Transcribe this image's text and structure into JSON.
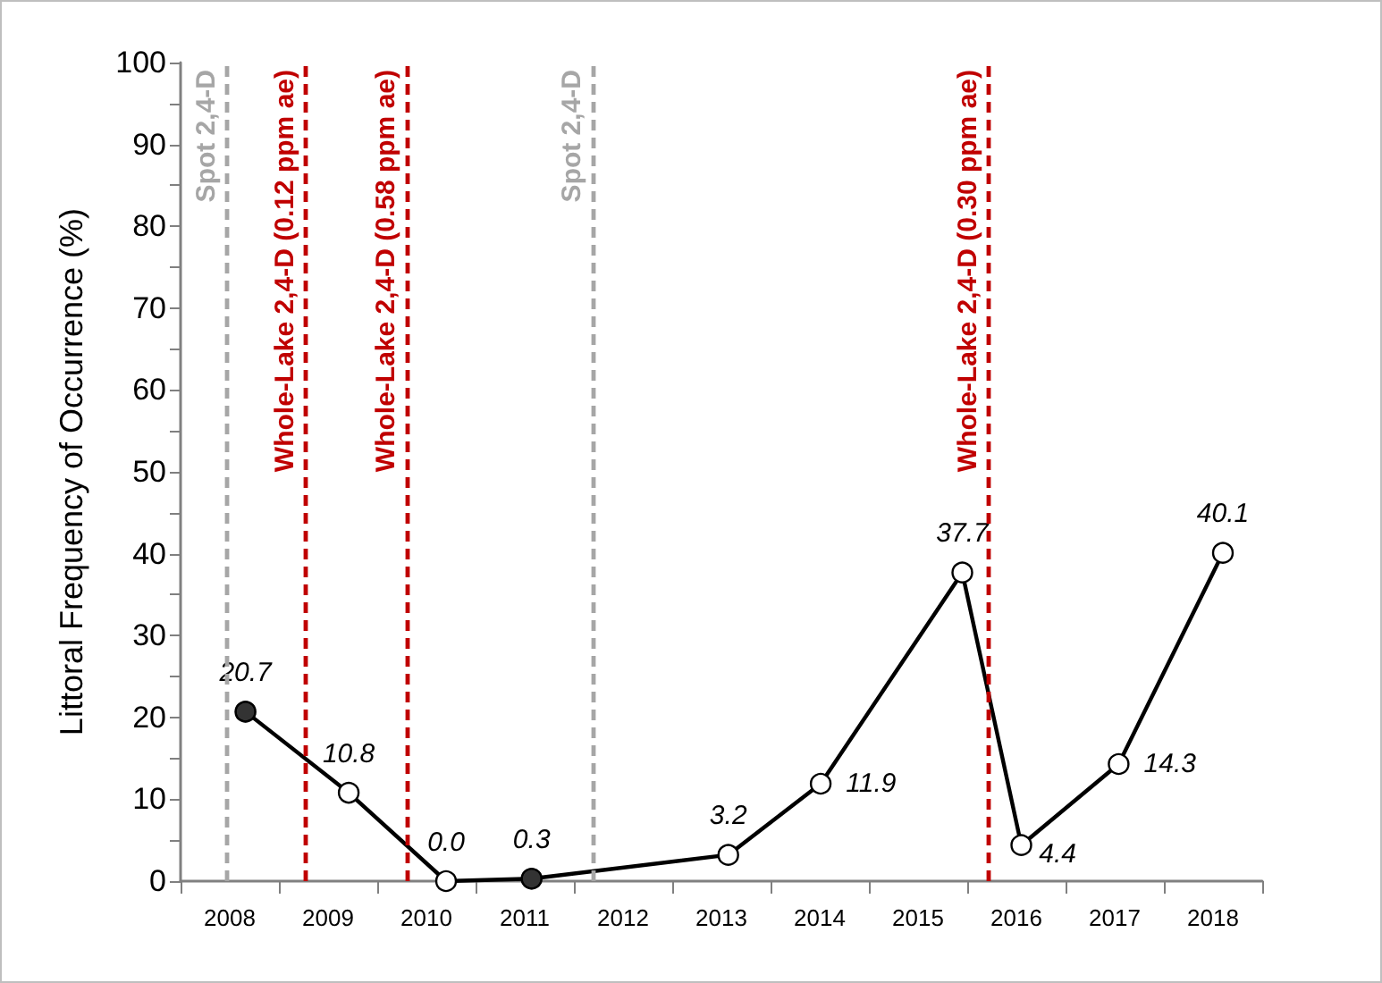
{
  "chart_data": {
    "type": "line",
    "ylabel": "Littoral Frequency of Occurrence (%)",
    "xlim": [
      2008,
      2019
    ],
    "xticks": [
      {
        "value": 2008,
        "label": null
      },
      {
        "value": 2008.5,
        "label": "2008"
      },
      {
        "value": 2009,
        "label": null
      },
      {
        "value": 2009.5,
        "label": "2009"
      },
      {
        "value": 2010,
        "label": null
      },
      {
        "value": 2010.5,
        "label": "2010"
      },
      {
        "value": 2011,
        "label": null
      },
      {
        "value": 2011.5,
        "label": "2011"
      },
      {
        "value": 2012,
        "label": null
      },
      {
        "value": 2012.5,
        "label": "2012"
      },
      {
        "value": 2013,
        "label": null
      },
      {
        "value": 2013.5,
        "label": "2013"
      },
      {
        "value": 2014,
        "label": null
      },
      {
        "value": 2014.5,
        "label": "2014"
      },
      {
        "value": 2015,
        "label": null
      },
      {
        "value": 2015.5,
        "label": "2015"
      },
      {
        "value": 2016,
        "label": null
      },
      {
        "value": 2016.5,
        "label": "2016"
      },
      {
        "value": 2017,
        "label": null
      },
      {
        "value": 2017.5,
        "label": "2017"
      },
      {
        "value": 2018,
        "label": null
      },
      {
        "value": 2018.5,
        "label": "2018"
      },
      {
        "value": 2019,
        "label": null
      }
    ],
    "ylim": [
      0,
      100
    ],
    "yticks": [
      0,
      {
        "value": 5,
        "label": null
      },
      10,
      {
        "value": 15,
        "label": null
      },
      20,
      {
        "value": 25,
        "label": null
      },
      30,
      {
        "value": 35,
        "label": null
      },
      40,
      {
        "value": 45,
        "label": null
      },
      50,
      {
        "value": 55,
        "label": null
      },
      60,
      {
        "value": 65,
        "label": null
      },
      70,
      {
        "value": 75,
        "label": null
      },
      80,
      {
        "value": 85,
        "label": null
      },
      90,
      {
        "value": 95,
        "label": null
      },
      100
    ],
    "grid": false,
    "marker": "circle",
    "line_style": "solid",
    "series": [
      {
        "type": "line",
        "color": "#000000",
        "x": [
          2008.66,
          2009.71,
          2010.7,
          2011.57,
          2013.57,
          2014.51,
          2015.95,
          2016.55,
          2017.54,
          2018.6
        ],
        "values": [
          20.7,
          10.8,
          0.0,
          0.3,
          3.2,
          11.9,
          37.7,
          4.4,
          14.3,
          40.1
        ],
        "value_labels": [
          "20.7",
          "10.8",
          "0.0",
          "0.3",
          "3.2",
          "11.9",
          "37.7",
          "4.4",
          "14.3",
          "40.1"
        ]
      },
      {
        "type": "scatter",
        "color": "#000000",
        "x": [
          2008.66,
          2011.57
        ],
        "values": [
          20.7,
          0.3
        ]
      }
    ],
    "ref_lines": [
      {
        "axis": "x",
        "value": 2008.47,
        "label": "Spot 2,4-D",
        "color": "#a6a6a6",
        "line_style": "dashed"
      },
      {
        "axis": "x",
        "value": 2009.27,
        "label": "Whole-Lake 2,4-D (0.12 ppm ae)",
        "color": "#c00000",
        "line_style": "dashed"
      },
      {
        "axis": "x",
        "value": 2010.3,
        "label": "Whole-Lake 2,4-D (0.58 ppm ae)",
        "color": "#c00000",
        "line_style": "dashed"
      },
      {
        "axis": "x",
        "value": 2012.19,
        "label": "Spot 2,4-D",
        "color": "#a6a6a6",
        "line_style": "dashed"
      },
      {
        "axis": "x",
        "value": 2016.22,
        "label": "Whole-Lake 2,4-D (0.30 ppm ae)",
        "color": "#c00000",
        "line_style": "dashed"
      }
    ]
  }
}
